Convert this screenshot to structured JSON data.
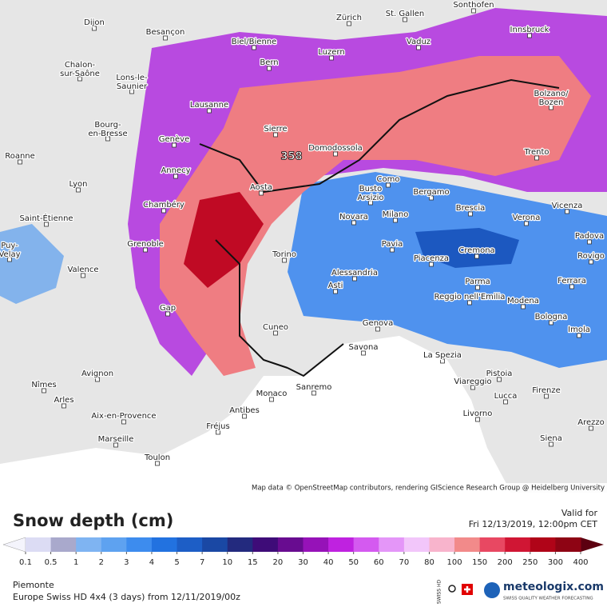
{
  "map": {
    "attribution": "Map data © OpenStreetMap contributors, rendering GIScience Research Group @ Heidelberg University",
    "max_label": "358",
    "cities": [
      [
        "Dijon"
      ],
      [
        "Besançon"
      ],
      [
        "Zürich"
      ],
      [
        "St. Gallen"
      ],
      [
        "Sonthofen"
      ],
      [
        "Innsbruck"
      ],
      [
        "Biel/Bienne"
      ],
      [
        "Vaduz"
      ],
      [
        "Luzern"
      ],
      [
        "Bern"
      ],
      [
        "Chalon-",
        "sur-Saône"
      ],
      [
        "Lons-le-",
        "Saunier"
      ],
      [
        "Lausanne"
      ],
      [
        "Bolzano/",
        "Bozen"
      ],
      [
        "Sierre"
      ],
      [
        "Bourg-",
        "en-Bresse"
      ],
      [
        "Genève"
      ],
      [
        "Domodossola"
      ],
      [
        "Roanne"
      ],
      [
        "Trento"
      ],
      [
        "Annecy"
      ],
      [
        "Como"
      ],
      [
        "Lyon"
      ],
      [
        "Aosta"
      ],
      [
        "Busto",
        "Arsizio"
      ],
      [
        "Bergamo"
      ],
      [
        "Chambéry"
      ],
      [
        "Novara"
      ],
      [
        "Milano"
      ],
      [
        "Brescia"
      ],
      [
        "Verona"
      ],
      [
        "Vicenza"
      ],
      [
        "Saint-Étienne"
      ],
      [
        "Padova"
      ],
      [
        "Grenoble"
      ],
      [
        "Pavia"
      ],
      [
        "Cremona"
      ],
      [
        "Piacenza"
      ],
      [
        "Rovigo"
      ],
      [
        "Puy-",
        "Velay"
      ],
      [
        "Torino"
      ],
      [
        "Valence"
      ],
      [
        "Alessandria"
      ],
      [
        "Parma"
      ],
      [
        "Ferrara"
      ],
      [
        "Asti"
      ],
      [
        "Reggio nell'Emilia"
      ],
      [
        "Modena"
      ],
      [
        "Gap"
      ],
      [
        "Bologna"
      ],
      [
        "Cuneo"
      ],
      [
        "Genova"
      ],
      [
        "Imola"
      ],
      [
        "Savona"
      ],
      [
        "La Spezia"
      ],
      [
        "Avignon"
      ],
      [
        "Pistoia"
      ],
      [
        "Nîmes"
      ],
      [
        "Sanremo"
      ],
      [
        "Viareggio"
      ],
      [
        "Monaco"
      ],
      [
        "Firenze"
      ],
      [
        "Arles"
      ],
      [
        "Lucca"
      ],
      [
        "Antibes"
      ],
      [
        "Aix-en-Provence"
      ],
      [
        "Livorno"
      ],
      [
        "Arezzo"
      ],
      [
        "Fréjus"
      ],
      [
        "Marseille"
      ],
      [
        "Siena"
      ],
      [
        "Toulon"
      ]
    ]
  },
  "legend": {
    "title": "Snow depth (cm)",
    "levels": [
      0.1,
      0.5,
      1,
      2,
      3,
      4,
      5,
      7,
      10,
      15,
      20,
      30,
      40,
      50,
      60,
      70,
      80,
      100,
      150,
      200,
      250,
      300,
      400
    ],
    "colors": [
      "#dcdcf4",
      "#a9a9cc",
      "#7fb4f2",
      "#5ea2f0",
      "#3d8cee",
      "#2272e0",
      "#1d5ec6",
      "#1a48a4",
      "#232a7e",
      "#3e0c78",
      "#680c90",
      "#9612b8",
      "#bf22e0",
      "#d45af0",
      "#e496f8",
      "#f2c6fa",
      "#f8b4cc",
      "#f28a8a",
      "#e84862",
      "#d01634",
      "#b00418",
      "#8e0414"
    ],
    "under_color": "#f4f4fc",
    "over_color": "#5c0010"
  },
  "footer": {
    "valid_label": "Valid for",
    "valid_time": "Fri 12/13/2019, 12:00pm CET",
    "region": "Piemonte",
    "model": "Europe Swiss HD 4x4 (3 days) from 12/11/2019/00z",
    "badge": "SWISS HD",
    "brand": "meteologix.com",
    "slogan": "SWISS QUALITY WEATHER FORECASTING"
  }
}
